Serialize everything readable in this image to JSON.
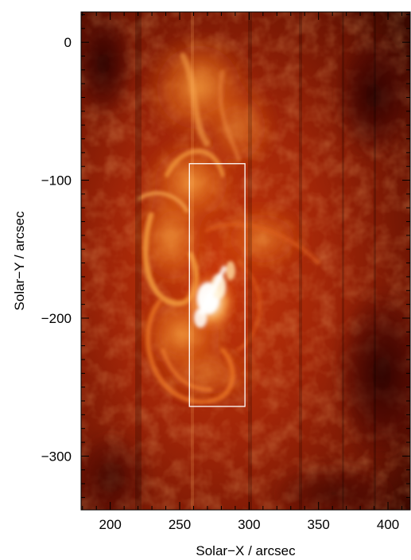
{
  "chart_data": {
    "type": "heatmap",
    "title": "",
    "xlabel": "Solar−X / arcsec",
    "ylabel": "Solar−Y / arcsec",
    "xlim": [
      179,
      416
    ],
    "ylim": [
      -339,
      22
    ],
    "x_ticks": [
      200,
      250,
      300,
      350,
      400
    ],
    "y_ticks": [
      0,
      -100,
      -200,
      -300
    ],
    "x_tick_labels": [
      "200",
      "250",
      "300",
      "350",
      "400"
    ],
    "y_tick_labels": [
      "0",
      "−100",
      "−200",
      "−300"
    ],
    "x_minor_step": 10,
    "y_minor_step": 10,
    "grid": false,
    "colormap": "red-temperature",
    "colormap_stops": [
      "#2a0500",
      "#8a1800",
      "#d04a0a",
      "#f59030",
      "#ffe6b0",
      "#ffffff"
    ],
    "annotations": [
      {
        "type": "rectangle",
        "x0": 257,
        "x1": 297,
        "y0": -88,
        "y1": -264,
        "color": "#ffffff"
      }
    ]
  }
}
